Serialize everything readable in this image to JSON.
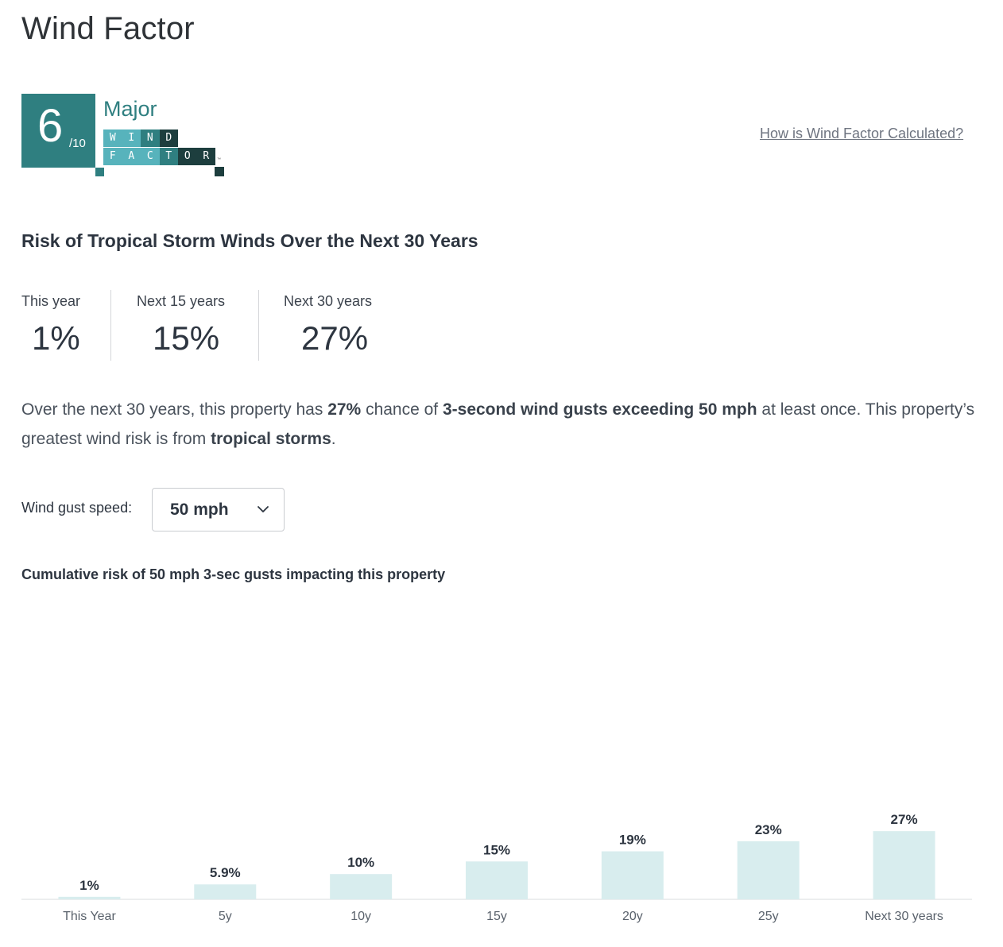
{
  "page": {
    "title": "Wind Factor"
  },
  "badge": {
    "score": "6",
    "out_of": "/10",
    "level": "Major",
    "wordmark_line1": [
      "W",
      "I",
      "N",
      "D"
    ],
    "wordmark_line2": [
      "F",
      "A",
      "C",
      "T",
      "O",
      "R"
    ],
    "trademark": "™",
    "colors": {
      "primary": "#2f7f80",
      "light": "#57b3bc",
      "dark": "#1d3e3e"
    }
  },
  "link": {
    "how_calculated": "How is Wind Factor Calculated?"
  },
  "risk_section": {
    "title": "Risk of Tropical Storm Winds Over the Next 30 Years",
    "stats": [
      {
        "label": "This year",
        "value": "1%"
      },
      {
        "label": "Next 15 years",
        "value": "15%"
      },
      {
        "label": "Next 30 years",
        "value": "27%"
      }
    ]
  },
  "summary": {
    "part1": "Over the next 30 years, this property has ",
    "bold1": "27%",
    "part2": " chance of ",
    "bold2": "3-second wind gusts exceeding 50 mph",
    "part3": " at least once. This property’s greatest wind risk is from ",
    "bold3": "tropical storms",
    "part4": "."
  },
  "gust_control": {
    "label": "Wind gust speed:",
    "selected": "50 mph"
  },
  "chart_title": "Cumulative risk of 50 mph 3-sec gusts impacting this property",
  "chart_data": {
    "type": "bar",
    "categories": [
      "This Year",
      "5y",
      "10y",
      "15y",
      "20y",
      "25y",
      "Next 30 years"
    ],
    "values": [
      1,
      5.9,
      10,
      15,
      19,
      23,
      27
    ],
    "data_labels": [
      "1%",
      "5.9%",
      "10%",
      "15%",
      "19%",
      "23%",
      "27%"
    ],
    "unit": "%",
    "ylim": [
      0,
      100
    ],
    "bar_color": "#d8edee",
    "grid": false
  }
}
